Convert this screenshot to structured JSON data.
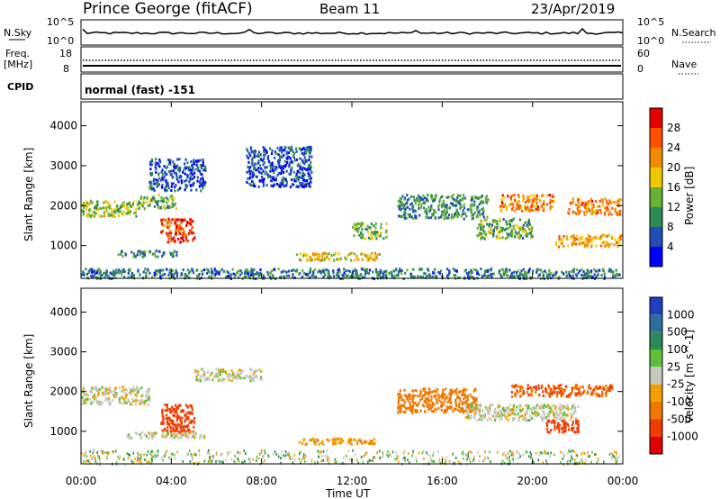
{
  "header": {
    "station": "Prince George (fitACF)",
    "beam": "Beam 11",
    "date": "23/Apr/2019"
  },
  "strips": {
    "nsky_label": "N.Sky",
    "nsky_ticks": [
      "10^5",
      "10^0"
    ],
    "nsearch_label": "N.Search",
    "nsearch_ticks": [
      "10^5",
      "10^0"
    ],
    "freq_label_1": "Freq.",
    "freq_label_2": "[MHz]",
    "freq_ticks": [
      "18",
      "8"
    ],
    "nave_label": "Nave",
    "nave_ticks": [
      "60",
      "0"
    ],
    "cpid_label": "CPID",
    "cpid_value": "normal (fast) -151"
  },
  "colors": {
    "power_scale": [
      "#0000ff",
      "#1f4fb3",
      "#2e8b57",
      "#66b032",
      "#f0c800",
      "#f08c00",
      "#ff5000",
      "#e60000"
    ],
    "velocity_scale": [
      "#1f3fbf",
      "#2e6e9e",
      "#2e8b57",
      "#5fbf3a",
      "#c8c8c0",
      "#f0a000",
      "#f07800",
      "#f03c00",
      "#e00000"
    ]
  },
  "chart_data": [
    {
      "type": "heatmap",
      "name": "power",
      "ylabel": "Slant Range [km]",
      "xlabel": "Time UT",
      "xticks": [
        "00:00",
        "04:00",
        "08:00",
        "12:00",
        "16:00",
        "20:00",
        "00:00"
      ],
      "xlim_hours": [
        0,
        24
      ],
      "yticks": [
        1000,
        2000,
        3000,
        4000
      ],
      "ylim": [
        180,
        4600
      ],
      "colorbar_label": "Power [dB]",
      "colorbar_ticks": [
        "28",
        "24",
        "20",
        "16",
        "12",
        "8",
        "4"
      ],
      "colorbar_range": [
        0,
        30
      ],
      "echo_regions": [
        {
          "t": [
            0.0,
            2.5
          ],
          "r": [
            1750,
            2150
          ],
          "level": 14
        },
        {
          "t": [
            2.5,
            4.2
          ],
          "r": [
            1950,
            2300
          ],
          "level": 12
        },
        {
          "t": [
            3.5,
            5.0
          ],
          "r": [
            1100,
            1700
          ],
          "level": 26
        },
        {
          "t": [
            1.6,
            4.3
          ],
          "r": [
            750,
            900
          ],
          "level": 9
        },
        {
          "t": [
            3.0,
            5.5
          ],
          "r": [
            2400,
            3200
          ],
          "level": 5
        },
        {
          "t": [
            7.3,
            10.2
          ],
          "r": [
            2500,
            3500
          ],
          "level": 5
        },
        {
          "t": [
            9.5,
            13.2
          ],
          "r": [
            650,
            850
          ],
          "level": 18
        },
        {
          "t": [
            12.0,
            13.5
          ],
          "r": [
            1200,
            1600
          ],
          "level": 12
        },
        {
          "t": [
            14.0,
            18.0
          ],
          "r": [
            1700,
            2300
          ],
          "level": 10
        },
        {
          "t": [
            17.5,
            20.0
          ],
          "r": [
            1200,
            1700
          ],
          "level": 12
        },
        {
          "t": [
            18.5,
            21.0
          ],
          "r": [
            1900,
            2300
          ],
          "level": 22
        },
        {
          "t": [
            21.0,
            23.9
          ],
          "r": [
            1000,
            1300
          ],
          "level": 20
        },
        {
          "t": [
            21.5,
            23.9
          ],
          "r": [
            1800,
            2200
          ],
          "level": 22
        },
        {
          "t": [
            0.0,
            23.9
          ],
          "r": [
            200,
            450
          ],
          "level": 8
        }
      ]
    },
    {
      "type": "heatmap",
      "name": "velocity",
      "ylabel": "Slant Range [km]",
      "xlabel": "Time UT",
      "xticks": [
        "00:00",
        "04:00",
        "08:00",
        "12:00",
        "16:00",
        "20:00",
        "00:00"
      ],
      "xlim_hours": [
        0,
        24
      ],
      "yticks": [
        1000,
        2000,
        3000,
        4000
      ],
      "ylim": [
        180,
        4600
      ],
      "colorbar_label": "Velocity [m s^-1]",
      "colorbar_ticks": [
        "1000",
        "500",
        "100",
        "25",
        "-25",
        "-100",
        "-500",
        "-1000"
      ],
      "echo_regions": [
        {
          "t": [
            0.0,
            3.0
          ],
          "r": [
            1700,
            2150
          ],
          "velocity": 0
        },
        {
          "t": [
            3.5,
            5.0
          ],
          "r": [
            1000,
            1700
          ],
          "velocity": -400
        },
        {
          "t": [
            5.0,
            8.0
          ],
          "r": [
            2300,
            2600
          ],
          "velocity": 0
        },
        {
          "t": [
            2.0,
            5.5
          ],
          "r": [
            850,
            1000
          ],
          "velocity": 0
        },
        {
          "t": [
            9.5,
            13.0
          ],
          "r": [
            700,
            850
          ],
          "velocity": -80
        },
        {
          "t": [
            14.0,
            17.5
          ],
          "r": [
            1500,
            2100
          ],
          "velocity": -150
        },
        {
          "t": [
            17.0,
            22.0
          ],
          "r": [
            1300,
            1700
          ],
          "velocity": 0
        },
        {
          "t": [
            19.0,
            23.5
          ],
          "r": [
            1900,
            2200
          ],
          "velocity": -300
        },
        {
          "t": [
            20.5,
            22.0
          ],
          "r": [
            1000,
            1300
          ],
          "velocity": -500
        }
      ]
    }
  ]
}
